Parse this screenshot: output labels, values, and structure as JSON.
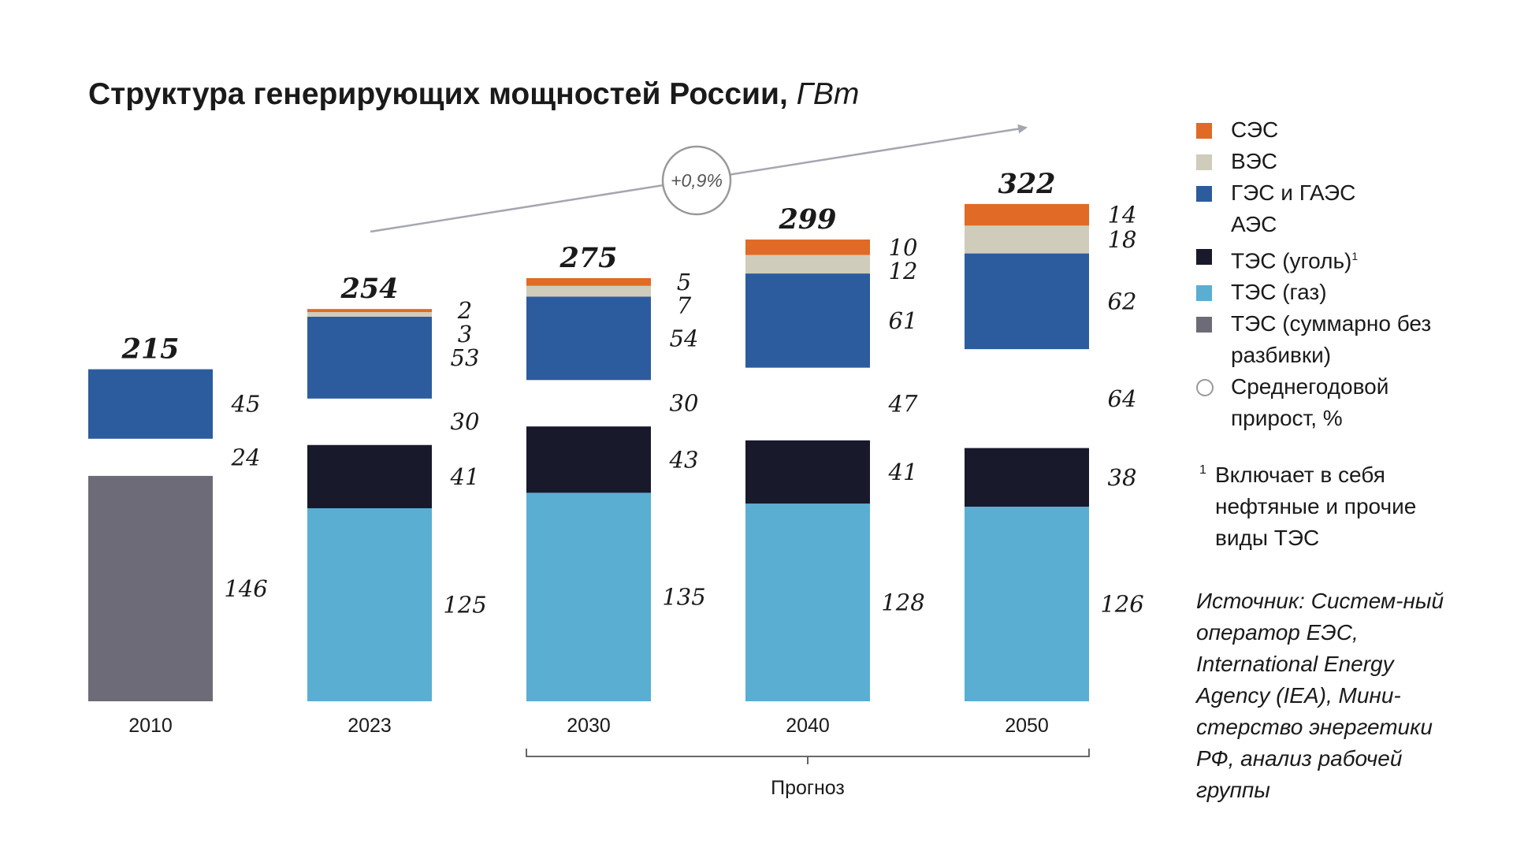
{
  "header": {
    "title": "Структура генерирующих мощностей России,",
    "unit": "ГВт"
  },
  "chart_data": {
    "type": "bar",
    "stacked": true,
    "categories": [
      "2010",
      "2023",
      "2030",
      "2040",
      "2050"
    ],
    "totals": [
      215,
      254,
      275,
      299,
      322
    ],
    "series": [
      {
        "name": "ТЭС (суммарно без разбивки)",
        "color": "#6e6b78",
        "values": [
          146,
          null,
          null,
          null,
          null
        ]
      },
      {
        "name": "ТЭС (газ)",
        "color": "#5aaed2",
        "values": [
          null,
          125,
          135,
          128,
          126
        ]
      },
      {
        "name": "ТЭС (уголь)",
        "color": "#18192b",
        "values": [
          null,
          41,
          43,
          41,
          38
        ]
      },
      {
        "name": "АЭС",
        "color": "#ffffff",
        "values": [
          24,
          30,
          30,
          47,
          64
        ]
      },
      {
        "name": "ГЭС и ГАЭС",
        "color": "#2d5c9e",
        "values": [
          45,
          53,
          54,
          61,
          62
        ]
      },
      {
        "name": "ВЭС",
        "color": "#cfccbc",
        "values": [
          null,
          3,
          7,
          12,
          18
        ]
      },
      {
        "name": "СЭС",
        "color": "#e06a26",
        "values": [
          null,
          2,
          5,
          10,
          14
        ]
      }
    ],
    "growth_annotation": "+0,9%",
    "forecast_label": "Прогноз",
    "forecast_range": [
      "2030",
      "2050"
    ]
  },
  "legend": {
    "items": [
      {
        "label": "СЭС",
        "color": "#e06a26"
      },
      {
        "label": "ВЭС",
        "color": "#cfccbc"
      },
      {
        "label": "ГЭС и ГАЭС",
        "color": "#2d5c9e"
      },
      {
        "label": "АЭС",
        "color": "#ffffff"
      },
      {
        "label": "ТЭС (уголь)",
        "sup": "1",
        "color": "#18192b"
      },
      {
        "label": "ТЭС (газ)",
        "color": "#5aaed2"
      },
      {
        "label": "ТЭС (суммарно без разбивки)",
        "color": "#6e6b78"
      },
      {
        "label": "Среднегодовой прирост, %",
        "marker": "ring"
      }
    ]
  },
  "footnote": {
    "mark": "1",
    "text": "Включает в себя нефтяные и прочие виды ТЭС"
  },
  "source": {
    "text": "Источник: Систем-ный оператор ЕЭС, International Energy Agency (IEA), Мини-стерство энергетики РФ, анализ рабочей группы"
  }
}
